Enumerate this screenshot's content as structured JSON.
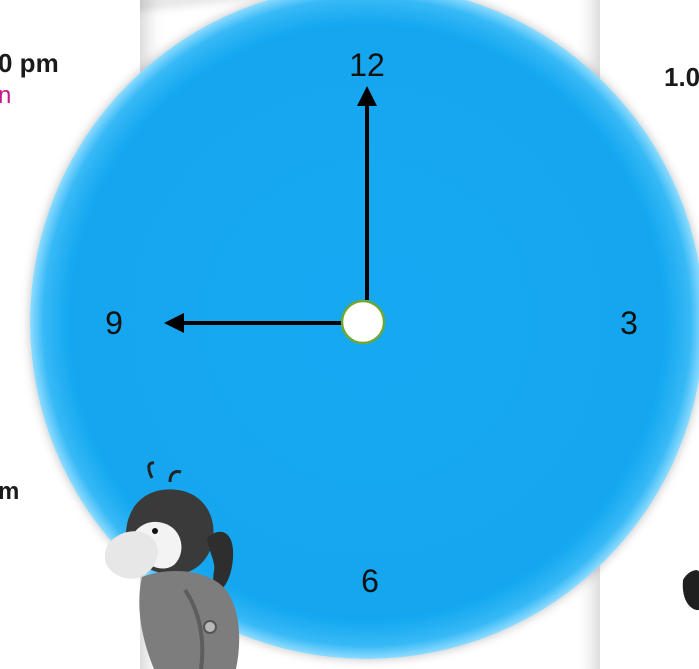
{
  "background_cards": {
    "left_top_label": "0 pm",
    "left_pink_label": "n",
    "left_bottom_label": "m",
    "right_top_label": "1.0"
  },
  "clock": {
    "face_color": "#12a8f0",
    "rim_color": "#8fdcff",
    "numerals": {
      "twelve": "12",
      "three": "3",
      "six": "6",
      "nine": "9"
    },
    "time_shown": {
      "hour_hand_points_to": "9",
      "minute_hand_points_to": "12"
    }
  },
  "characters": [
    {
      "name": "ant-cartoon-left"
    },
    {
      "name": "cartoon-figure-right-partial"
    }
  ]
}
